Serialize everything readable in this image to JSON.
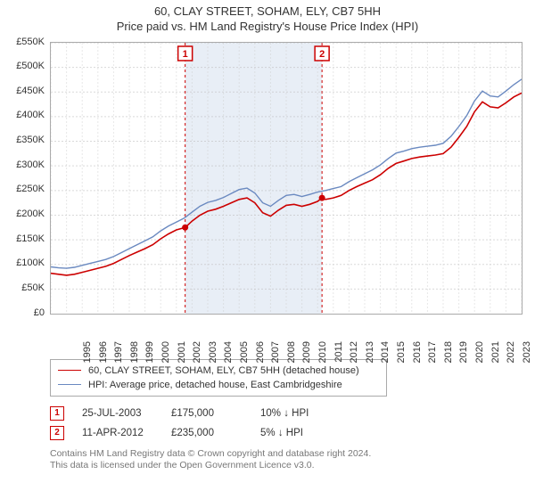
{
  "title_line1": "60, CLAY STREET, SOHAM, ELY, CB7 5HH",
  "title_line2": "Price paid vs. HM Land Registry's House Price Index (HPI)",
  "chart": {
    "type": "line",
    "background_color": "#ffffff",
    "grid_color": "#bbbbbb",
    "band_color": "#e8eef6",
    "xlim": [
      1995,
      2025
    ],
    "ylim": [
      0,
      550000
    ],
    "ytick_step": 50000,
    "yticks": [
      "£0",
      "£50K",
      "£100K",
      "£150K",
      "£200K",
      "£250K",
      "£300K",
      "£350K",
      "£400K",
      "£450K",
      "£500K",
      "£550K"
    ],
    "xticks": [
      "1995",
      "1996",
      "1997",
      "1998",
      "1999",
      "2000",
      "2001",
      "2002",
      "2003",
      "2004",
      "2005",
      "2006",
      "2007",
      "2008",
      "2009",
      "2010",
      "2011",
      "2012",
      "2013",
      "2014",
      "2015",
      "2016",
      "2017",
      "2018",
      "2019",
      "2020",
      "2021",
      "2022",
      "2023",
      "2024",
      "2025"
    ],
    "label_fontsize": 11,
    "series": {
      "property": {
        "label": "60, CLAY STREET, SOHAM, ELY, CB7 5HH (detached house)",
        "color": "#cc0000",
        "line_width": 1.6,
        "points": [
          [
            1995.0,
            82000
          ],
          [
            1995.5,
            80000
          ],
          [
            1996.0,
            78000
          ],
          [
            1996.5,
            80000
          ],
          [
            1997.0,
            84000
          ],
          [
            1997.5,
            88000
          ],
          [
            1998.0,
            92000
          ],
          [
            1998.5,
            96000
          ],
          [
            1999.0,
            102000
          ],
          [
            1999.5,
            110000
          ],
          [
            2000.0,
            118000
          ],
          [
            2000.5,
            125000
          ],
          [
            2001.0,
            132000
          ],
          [
            2001.5,
            140000
          ],
          [
            2002.0,
            152000
          ],
          [
            2002.5,
            162000
          ],
          [
            2003.0,
            170000
          ],
          [
            2003.56,
            175000
          ],
          [
            2004.0,
            188000
          ],
          [
            2004.5,
            200000
          ],
          [
            2005.0,
            208000
          ],
          [
            2005.5,
            212000
          ],
          [
            2006.0,
            218000
          ],
          [
            2006.5,
            225000
          ],
          [
            2007.0,
            232000
          ],
          [
            2007.5,
            235000
          ],
          [
            2008.0,
            225000
          ],
          [
            2008.5,
            205000
          ],
          [
            2009.0,
            198000
          ],
          [
            2009.5,
            210000
          ],
          [
            2010.0,
            220000
          ],
          [
            2010.5,
            222000
          ],
          [
            2011.0,
            218000
          ],
          [
            2011.5,
            222000
          ],
          [
            2012.0,
            228000
          ],
          [
            2012.28,
            235000
          ],
          [
            2012.5,
            232000
          ],
          [
            2013.0,
            235000
          ],
          [
            2013.5,
            240000
          ],
          [
            2014.0,
            250000
          ],
          [
            2014.5,
            258000
          ],
          [
            2015.0,
            265000
          ],
          [
            2015.5,
            272000
          ],
          [
            2016.0,
            282000
          ],
          [
            2016.5,
            295000
          ],
          [
            2017.0,
            305000
          ],
          [
            2017.5,
            310000
          ],
          [
            2018.0,
            315000
          ],
          [
            2018.5,
            318000
          ],
          [
            2019.0,
            320000
          ],
          [
            2019.5,
            322000
          ],
          [
            2020.0,
            325000
          ],
          [
            2020.5,
            338000
          ],
          [
            2021.0,
            358000
          ],
          [
            2021.5,
            380000
          ],
          [
            2022.0,
            410000
          ],
          [
            2022.5,
            430000
          ],
          [
            2023.0,
            420000
          ],
          [
            2023.5,
            418000
          ],
          [
            2024.0,
            428000
          ],
          [
            2024.5,
            440000
          ],
          [
            2025.0,
            448000
          ]
        ]
      },
      "hpi": {
        "label": "HPI: Average price, detached house, East Cambridgeshire",
        "color": "#6a89c0",
        "line_width": 1.4,
        "points": [
          [
            1995.0,
            95000
          ],
          [
            1995.5,
            93000
          ],
          [
            1996.0,
            92000
          ],
          [
            1996.5,
            94000
          ],
          [
            1997.0,
            98000
          ],
          [
            1997.5,
            102000
          ],
          [
            1998.0,
            106000
          ],
          [
            1998.5,
            110000
          ],
          [
            1999.0,
            116000
          ],
          [
            1999.5,
            124000
          ],
          [
            2000.0,
            132000
          ],
          [
            2000.5,
            140000
          ],
          [
            2001.0,
            148000
          ],
          [
            2001.5,
            156000
          ],
          [
            2002.0,
            168000
          ],
          [
            2002.5,
            178000
          ],
          [
            2003.0,
            186000
          ],
          [
            2003.5,
            194000
          ],
          [
            2004.0,
            206000
          ],
          [
            2004.5,
            218000
          ],
          [
            2005.0,
            226000
          ],
          [
            2005.5,
            230000
          ],
          [
            2006.0,
            236000
          ],
          [
            2006.5,
            244000
          ],
          [
            2007.0,
            252000
          ],
          [
            2007.5,
            255000
          ],
          [
            2008.0,
            245000
          ],
          [
            2008.5,
            225000
          ],
          [
            2009.0,
            218000
          ],
          [
            2009.5,
            230000
          ],
          [
            2010.0,
            240000
          ],
          [
            2010.5,
            242000
          ],
          [
            2011.0,
            238000
          ],
          [
            2011.5,
            242000
          ],
          [
            2012.0,
            247000
          ],
          [
            2012.5,
            250000
          ],
          [
            2013.0,
            254000
          ],
          [
            2013.5,
            258000
          ],
          [
            2014.0,
            268000
          ],
          [
            2014.5,
            276000
          ],
          [
            2015.0,
            284000
          ],
          [
            2015.5,
            292000
          ],
          [
            2016.0,
            302000
          ],
          [
            2016.5,
            315000
          ],
          [
            2017.0,
            326000
          ],
          [
            2017.5,
            330000
          ],
          [
            2018.0,
            335000
          ],
          [
            2018.5,
            338000
          ],
          [
            2019.0,
            340000
          ],
          [
            2019.5,
            342000
          ],
          [
            2020.0,
            346000
          ],
          [
            2020.5,
            360000
          ],
          [
            2021.0,
            380000
          ],
          [
            2021.5,
            402000
          ],
          [
            2022.0,
            432000
          ],
          [
            2022.5,
            452000
          ],
          [
            2023.0,
            442000
          ],
          [
            2023.5,
            440000
          ],
          [
            2024.0,
            452000
          ],
          [
            2024.5,
            465000
          ],
          [
            2025.0,
            476000
          ]
        ]
      }
    },
    "markers": [
      {
        "n": "1",
        "x": 2003.56,
        "y": 175000,
        "color": "#cc0000"
      },
      {
        "n": "2",
        "x": 2012.28,
        "y": 235000,
        "color": "#cc0000"
      }
    ],
    "bands": [
      [
        2003.56,
        2012.28
      ]
    ]
  },
  "legend": {
    "row1": "60, CLAY STREET, SOHAM, ELY, CB7 5HH (detached house)",
    "row2": "HPI: Average price, detached house, East Cambridgeshire",
    "color1": "#cc0000",
    "color2": "#6a89c0"
  },
  "sales": [
    {
      "n": "1",
      "date": "25-JUL-2003",
      "price": "£175,000",
      "delta": "10% ↓ HPI"
    },
    {
      "n": "2",
      "date": "11-APR-2012",
      "price": "£235,000",
      "delta": "5% ↓ HPI"
    }
  ],
  "license_line1": "Contains HM Land Registry data © Crown copyright and database right 2024.",
  "license_line2": "This data is licensed under the Open Government Licence v3.0."
}
